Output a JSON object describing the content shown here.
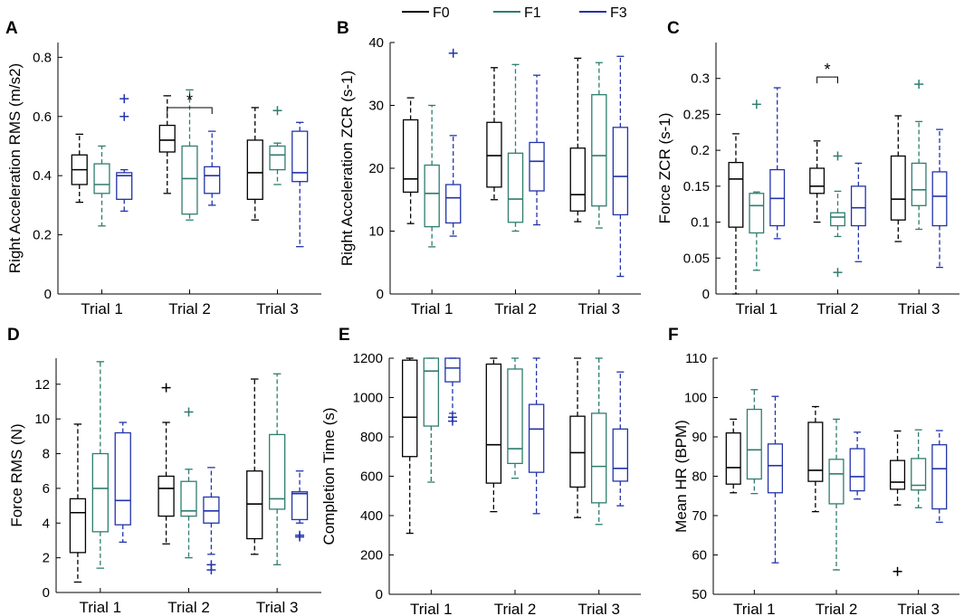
{
  "legend": [
    {
      "name": "F0",
      "color": "#000000"
    },
    {
      "name": "F1",
      "color": "#2e7d6e"
    },
    {
      "name": "F3",
      "color": "#2233aa"
    }
  ],
  "chart_data": [
    {
      "type": "box",
      "label": "A",
      "ylabel": "Right Acceleration RMS (m/s2)",
      "ylim": [
        0,
        0.85
      ],
      "yticks": [
        "0",
        "0.2",
        "0.4",
        "0.6",
        "0.8"
      ],
      "ytick_values": [
        0,
        0.2,
        0.4,
        0.6,
        0.8
      ],
      "categories": [
        "Trial 1",
        "Trial 2",
        "Trial 3"
      ],
      "significance": [
        {
          "trial": 1,
          "from": 0,
          "to": 2,
          "y": 0.63,
          "label": "*"
        }
      ],
      "series": [
        {
          "name": "F0",
          "boxes": [
            {
              "min": 0.31,
              "q1": 0.37,
              "median": 0.42,
              "q3": 0.47,
              "max": 0.54,
              "outliers": []
            },
            {
              "min": 0.34,
              "q1": 0.48,
              "median": 0.52,
              "q3": 0.57,
              "max": 0.67,
              "outliers": []
            },
            {
              "min": 0.25,
              "q1": 0.32,
              "median": 0.41,
              "q3": 0.52,
              "max": 0.63,
              "outliers": []
            }
          ]
        },
        {
          "name": "F1",
          "boxes": [
            {
              "min": 0.23,
              "q1": 0.34,
              "median": 0.37,
              "q3": 0.44,
              "max": 0.5,
              "outliers": []
            },
            {
              "min": 0.25,
              "q1": 0.27,
              "median": 0.39,
              "q3": 0.5,
              "max": 0.69,
              "outliers": []
            },
            {
              "min": 0.37,
              "q1": 0.42,
              "median": 0.47,
              "q3": 0.5,
              "max": 0.51,
              "outliers": [
                0.62
              ]
            }
          ]
        },
        {
          "name": "F3",
          "boxes": [
            {
              "min": 0.28,
              "q1": 0.32,
              "median": 0.4,
              "q3": 0.41,
              "max": 0.42,
              "outliers": [
                0.6,
                0.66
              ]
            },
            {
              "min": 0.3,
              "q1": 0.34,
              "median": 0.4,
              "q3": 0.43,
              "max": 0.55,
              "outliers": []
            },
            {
              "min": 0.16,
              "q1": 0.38,
              "median": 0.41,
              "q3": 0.55,
              "max": 0.58,
              "outliers": []
            }
          ]
        }
      ]
    },
    {
      "type": "box",
      "label": "B",
      "ylabel": "Right Acceleration ZCR (s-1)",
      "ylim": [
        0,
        40
      ],
      "yticks": [
        "0",
        "10",
        "20",
        "30",
        "40"
      ],
      "ytick_values": [
        0,
        10,
        20,
        30,
        40
      ],
      "categories": [
        "Trial 1",
        "Trial 2",
        "Trial 3"
      ],
      "significance": [],
      "series": [
        {
          "name": "F0",
          "boxes": [
            {
              "min": 11.2,
              "q1": 16.2,
              "median": 18.3,
              "q3": 27.7,
              "max": 31.2,
              "outliers": []
            },
            {
              "min": 15.0,
              "q1": 17.0,
              "median": 22.0,
              "q3": 27.3,
              "max": 36.0,
              "outliers": []
            },
            {
              "min": 11.5,
              "q1": 13.2,
              "median": 15.8,
              "q3": 23.2,
              "max": 37.5,
              "outliers": []
            }
          ]
        },
        {
          "name": "F1",
          "boxes": [
            {
              "min": 7.5,
              "q1": 10.7,
              "median": 16.0,
              "q3": 20.5,
              "max": 30.0,
              "outliers": []
            },
            {
              "min": 10.0,
              "q1": 11.4,
              "median": 15.1,
              "q3": 22.4,
              "max": 36.5,
              "outliers": []
            },
            {
              "min": 10.5,
              "q1": 14.0,
              "median": 22.0,
              "q3": 31.7,
              "max": 36.8,
              "outliers": []
            }
          ]
        },
        {
          "name": "F3",
          "boxes": [
            {
              "min": 9.2,
              "q1": 11.3,
              "median": 15.3,
              "q3": 17.4,
              "max": 25.2,
              "outliers": [
                38.3
              ]
            },
            {
              "min": 11.0,
              "q1": 16.4,
              "median": 21.1,
              "q3": 24.1,
              "max": 34.8,
              "outliers": []
            },
            {
              "min": 2.8,
              "q1": 12.6,
              "median": 18.7,
              "q3": 26.5,
              "max": 37.8,
              "outliers": []
            }
          ]
        }
      ]
    },
    {
      "type": "box",
      "label": "C",
      "ylabel": "Force ZCR (s-1)",
      "ylim": [
        0,
        0.35
      ],
      "yticks": [
        "0",
        "0.05",
        "0.1",
        "0.15",
        "0.2",
        "0.25",
        "0.3"
      ],
      "ytick_values": [
        0,
        0.05,
        0.1,
        0.15,
        0.2,
        0.25,
        0.3
      ],
      "categories": [
        "Trial 1",
        "Trial 2",
        "Trial 3"
      ],
      "significance": [
        {
          "trial": 1,
          "from": 0,
          "to": 1,
          "y": 0.302,
          "label": "*"
        }
      ],
      "series": [
        {
          "name": "F0",
          "boxes": [
            {
              "min": 0.0,
              "q1": 0.093,
              "median": 0.16,
              "q3": 0.183,
              "max": 0.223,
              "outliers": []
            },
            {
              "min": 0.1,
              "q1": 0.14,
              "median": 0.15,
              "q3": 0.175,
              "max": 0.213,
              "outliers": []
            },
            {
              "min": 0.073,
              "q1": 0.103,
              "median": 0.132,
              "q3": 0.192,
              "max": 0.248,
              "outliers": []
            }
          ]
        },
        {
          "name": "F1",
          "boxes": [
            {
              "min": 0.033,
              "q1": 0.085,
              "median": 0.123,
              "q3": 0.14,
              "max": 0.142,
              "outliers": [
                0.264
              ]
            },
            {
              "min": 0.08,
              "q1": 0.095,
              "median": 0.107,
              "q3": 0.113,
              "max": 0.143,
              "outliers": [
                0.192,
                0.03
              ]
            },
            {
              "min": 0.09,
              "q1": 0.123,
              "median": 0.145,
              "q3": 0.182,
              "max": 0.24,
              "outliers": [
                0.292
              ]
            }
          ]
        },
        {
          "name": "F3",
          "boxes": [
            {
              "min": 0.077,
              "q1": 0.095,
              "median": 0.133,
              "q3": 0.173,
              "max": 0.287,
              "outliers": []
            },
            {
              "min": 0.045,
              "q1": 0.095,
              "median": 0.12,
              "q3": 0.15,
              "max": 0.182,
              "outliers": []
            },
            {
              "min": 0.037,
              "q1": 0.095,
              "median": 0.136,
              "q3": 0.17,
              "max": 0.229,
              "outliers": []
            }
          ]
        }
      ]
    },
    {
      "type": "box",
      "label": "D",
      "ylabel": "Force RMS (N)",
      "ylim": [
        0,
        13.5
      ],
      "yticks": [
        "0",
        "2",
        "4",
        "6",
        "8",
        "10",
        "12"
      ],
      "ytick_values": [
        0,
        2,
        4,
        6,
        8,
        10,
        12
      ],
      "categories": [
        "Trial 1",
        "Trial 2",
        "Trial 3"
      ],
      "significance": [],
      "series": [
        {
          "name": "F0",
          "boxes": [
            {
              "min": 0.6,
              "q1": 2.3,
              "median": 4.6,
              "q3": 5.4,
              "max": 9.7,
              "outliers": []
            },
            {
              "min": 2.8,
              "q1": 4.4,
              "median": 6.0,
              "q3": 6.7,
              "max": 9.8,
              "outliers": [
                11.8
              ]
            },
            {
              "min": 2.2,
              "q1": 3.1,
              "median": 5.1,
              "q3": 7.0,
              "max": 12.3,
              "outliers": []
            }
          ]
        },
        {
          "name": "F1",
          "boxes": [
            {
              "min": 1.4,
              "q1": 3.5,
              "median": 6.0,
              "q3": 8.0,
              "max": 13.3,
              "outliers": []
            },
            {
              "min": 2.0,
              "q1": 4.4,
              "median": 4.7,
              "q3": 6.4,
              "max": 7.1,
              "outliers": [
                10.4
              ]
            },
            {
              "min": 1.6,
              "q1": 4.8,
              "median": 5.4,
              "q3": 9.1,
              "max": 12.6,
              "outliers": []
            }
          ]
        },
        {
          "name": "F3",
          "boxes": [
            {
              "min": 2.9,
              "q1": 3.9,
              "median": 5.3,
              "q3": 9.2,
              "max": 9.8,
              "outliers": []
            },
            {
              "min": 2.2,
              "q1": 4.0,
              "median": 4.7,
              "q3": 5.5,
              "max": 7.2,
              "outliers": [
                1.6,
                1.3
              ]
            },
            {
              "min": 4.0,
              "q1": 4.2,
              "median": 5.7,
              "q3": 5.8,
              "max": 7.0,
              "outliers": [
                3.3,
                3.2
              ]
            }
          ]
        }
      ]
    },
    {
      "type": "box",
      "label": "E",
      "ylabel": "Completion Time (s)",
      "ylim": [
        0,
        1200
      ],
      "yticks": [
        "0",
        "200",
        "400",
        "600",
        "800",
        "1000",
        "1200"
      ],
      "ytick_values": [
        0,
        200,
        400,
        600,
        800,
        1000,
        1200
      ],
      "categories": [
        "Trial 1",
        "Trial 2",
        "Trial 3"
      ],
      "significance": [],
      "series": [
        {
          "name": "F0",
          "boxes": [
            {
              "min": 310,
              "q1": 700,
              "median": 900,
              "q3": 1190,
              "max": 1200,
              "outliers": []
            },
            {
              "min": 420,
              "q1": 565,
              "median": 760,
              "q3": 1170,
              "max": 1200,
              "outliers": []
            },
            {
              "min": 390,
              "q1": 545,
              "median": 720,
              "q3": 905,
              "max": 1200,
              "outliers": []
            }
          ]
        },
        {
          "name": "F1",
          "boxes": [
            {
              "min": 570,
              "q1": 855,
              "median": 1135,
              "q3": 1200,
              "max": 1200,
              "outliers": []
            },
            {
              "min": 590,
              "q1": 665,
              "median": 740,
              "q3": 1145,
              "max": 1200,
              "outliers": []
            },
            {
              "min": 355,
              "q1": 465,
              "median": 650,
              "q3": 920,
              "max": 1200,
              "outliers": []
            }
          ]
        },
        {
          "name": "F3",
          "boxes": [
            {
              "min": 920,
              "q1": 1080,
              "median": 1150,
              "q3": 1200,
              "max": 1200,
              "outliers": [
                880,
                900
              ]
            },
            {
              "min": 410,
              "q1": 620,
              "median": 840,
              "q3": 965,
              "max": 1200,
              "outliers": []
            },
            {
              "min": 450,
              "q1": 575,
              "median": 640,
              "q3": 840,
              "max": 1130,
              "outliers": []
            }
          ]
        }
      ]
    },
    {
      "type": "box",
      "label": "F",
      "ylabel": "Mean HR (BPM)",
      "ylim": [
        50,
        110
      ],
      "yticks": [
        "50",
        "60",
        "70",
        "80",
        "90",
        "100",
        "110"
      ],
      "ytick_values": [
        50,
        60,
        70,
        80,
        90,
        100,
        110
      ],
      "categories": [
        "Trial 1",
        "Trial 2",
        "Trial 3"
      ],
      "significance": [],
      "series": [
        {
          "name": "F0",
          "boxes": [
            {
              "min": 75.8,
              "q1": 78.0,
              "median": 82.2,
              "q3": 91.0,
              "max": 94.5,
              "outliers": []
            },
            {
              "min": 71.0,
              "q1": 78.7,
              "median": 81.5,
              "q3": 93.7,
              "max": 97.7,
              "outliers": []
            },
            {
              "min": 72.7,
              "q1": 76.7,
              "median": 78.5,
              "q3": 84.0,
              "max": 91.5,
              "outliers": [
                55.8
              ]
            }
          ]
        },
        {
          "name": "F1",
          "boxes": [
            {
              "min": 75.6,
              "q1": 79.3,
              "median": 86.7,
              "q3": 97.0,
              "max": 102.0,
              "outliers": []
            },
            {
              "min": 56.2,
              "q1": 73.0,
              "median": 80.6,
              "q3": 84.3,
              "max": 94.5,
              "outliers": []
            },
            {
              "min": 72.0,
              "q1": 76.5,
              "median": 77.7,
              "q3": 84.5,
              "max": 91.8,
              "outliers": []
            }
          ]
        },
        {
          "name": "F3",
          "boxes": [
            {
              "min": 58.0,
              "q1": 75.8,
              "median": 82.7,
              "q3": 88.2,
              "max": 100.3,
              "outliers": []
            },
            {
              "min": 74.2,
              "q1": 76.3,
              "median": 79.9,
              "q3": 87.0,
              "max": 91.2,
              "outliers": []
            },
            {
              "min": 68.3,
              "q1": 71.7,
              "median": 81.9,
              "q3": 88.0,
              "max": 91.6,
              "outliers": []
            }
          ]
        }
      ]
    }
  ]
}
